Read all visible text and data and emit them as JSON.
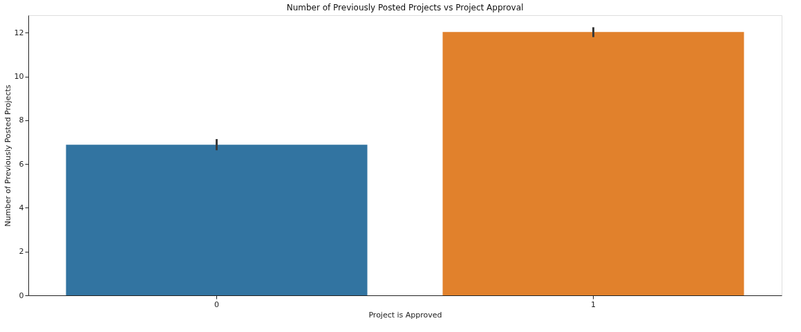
{
  "chart_data": {
    "type": "bar",
    "title": "Number of Previously Posted Projects vs Project Approval",
    "xlabel": "Project is Approved",
    "ylabel": "Number of Previously Posted Projects",
    "categories": [
      "0",
      "1"
    ],
    "values": [
      6.88,
      12.03
    ],
    "colors": [
      "#3274a1",
      "#e1812c"
    ],
    "errors": [
      [
        6.63,
        7.14
      ],
      [
        11.8,
        12.25
      ]
    ],
    "ylim": [
      0,
      12.8
    ],
    "yticks": [
      0,
      2,
      4,
      6,
      8,
      10,
      12
    ],
    "grid": false,
    "legend": false
  }
}
